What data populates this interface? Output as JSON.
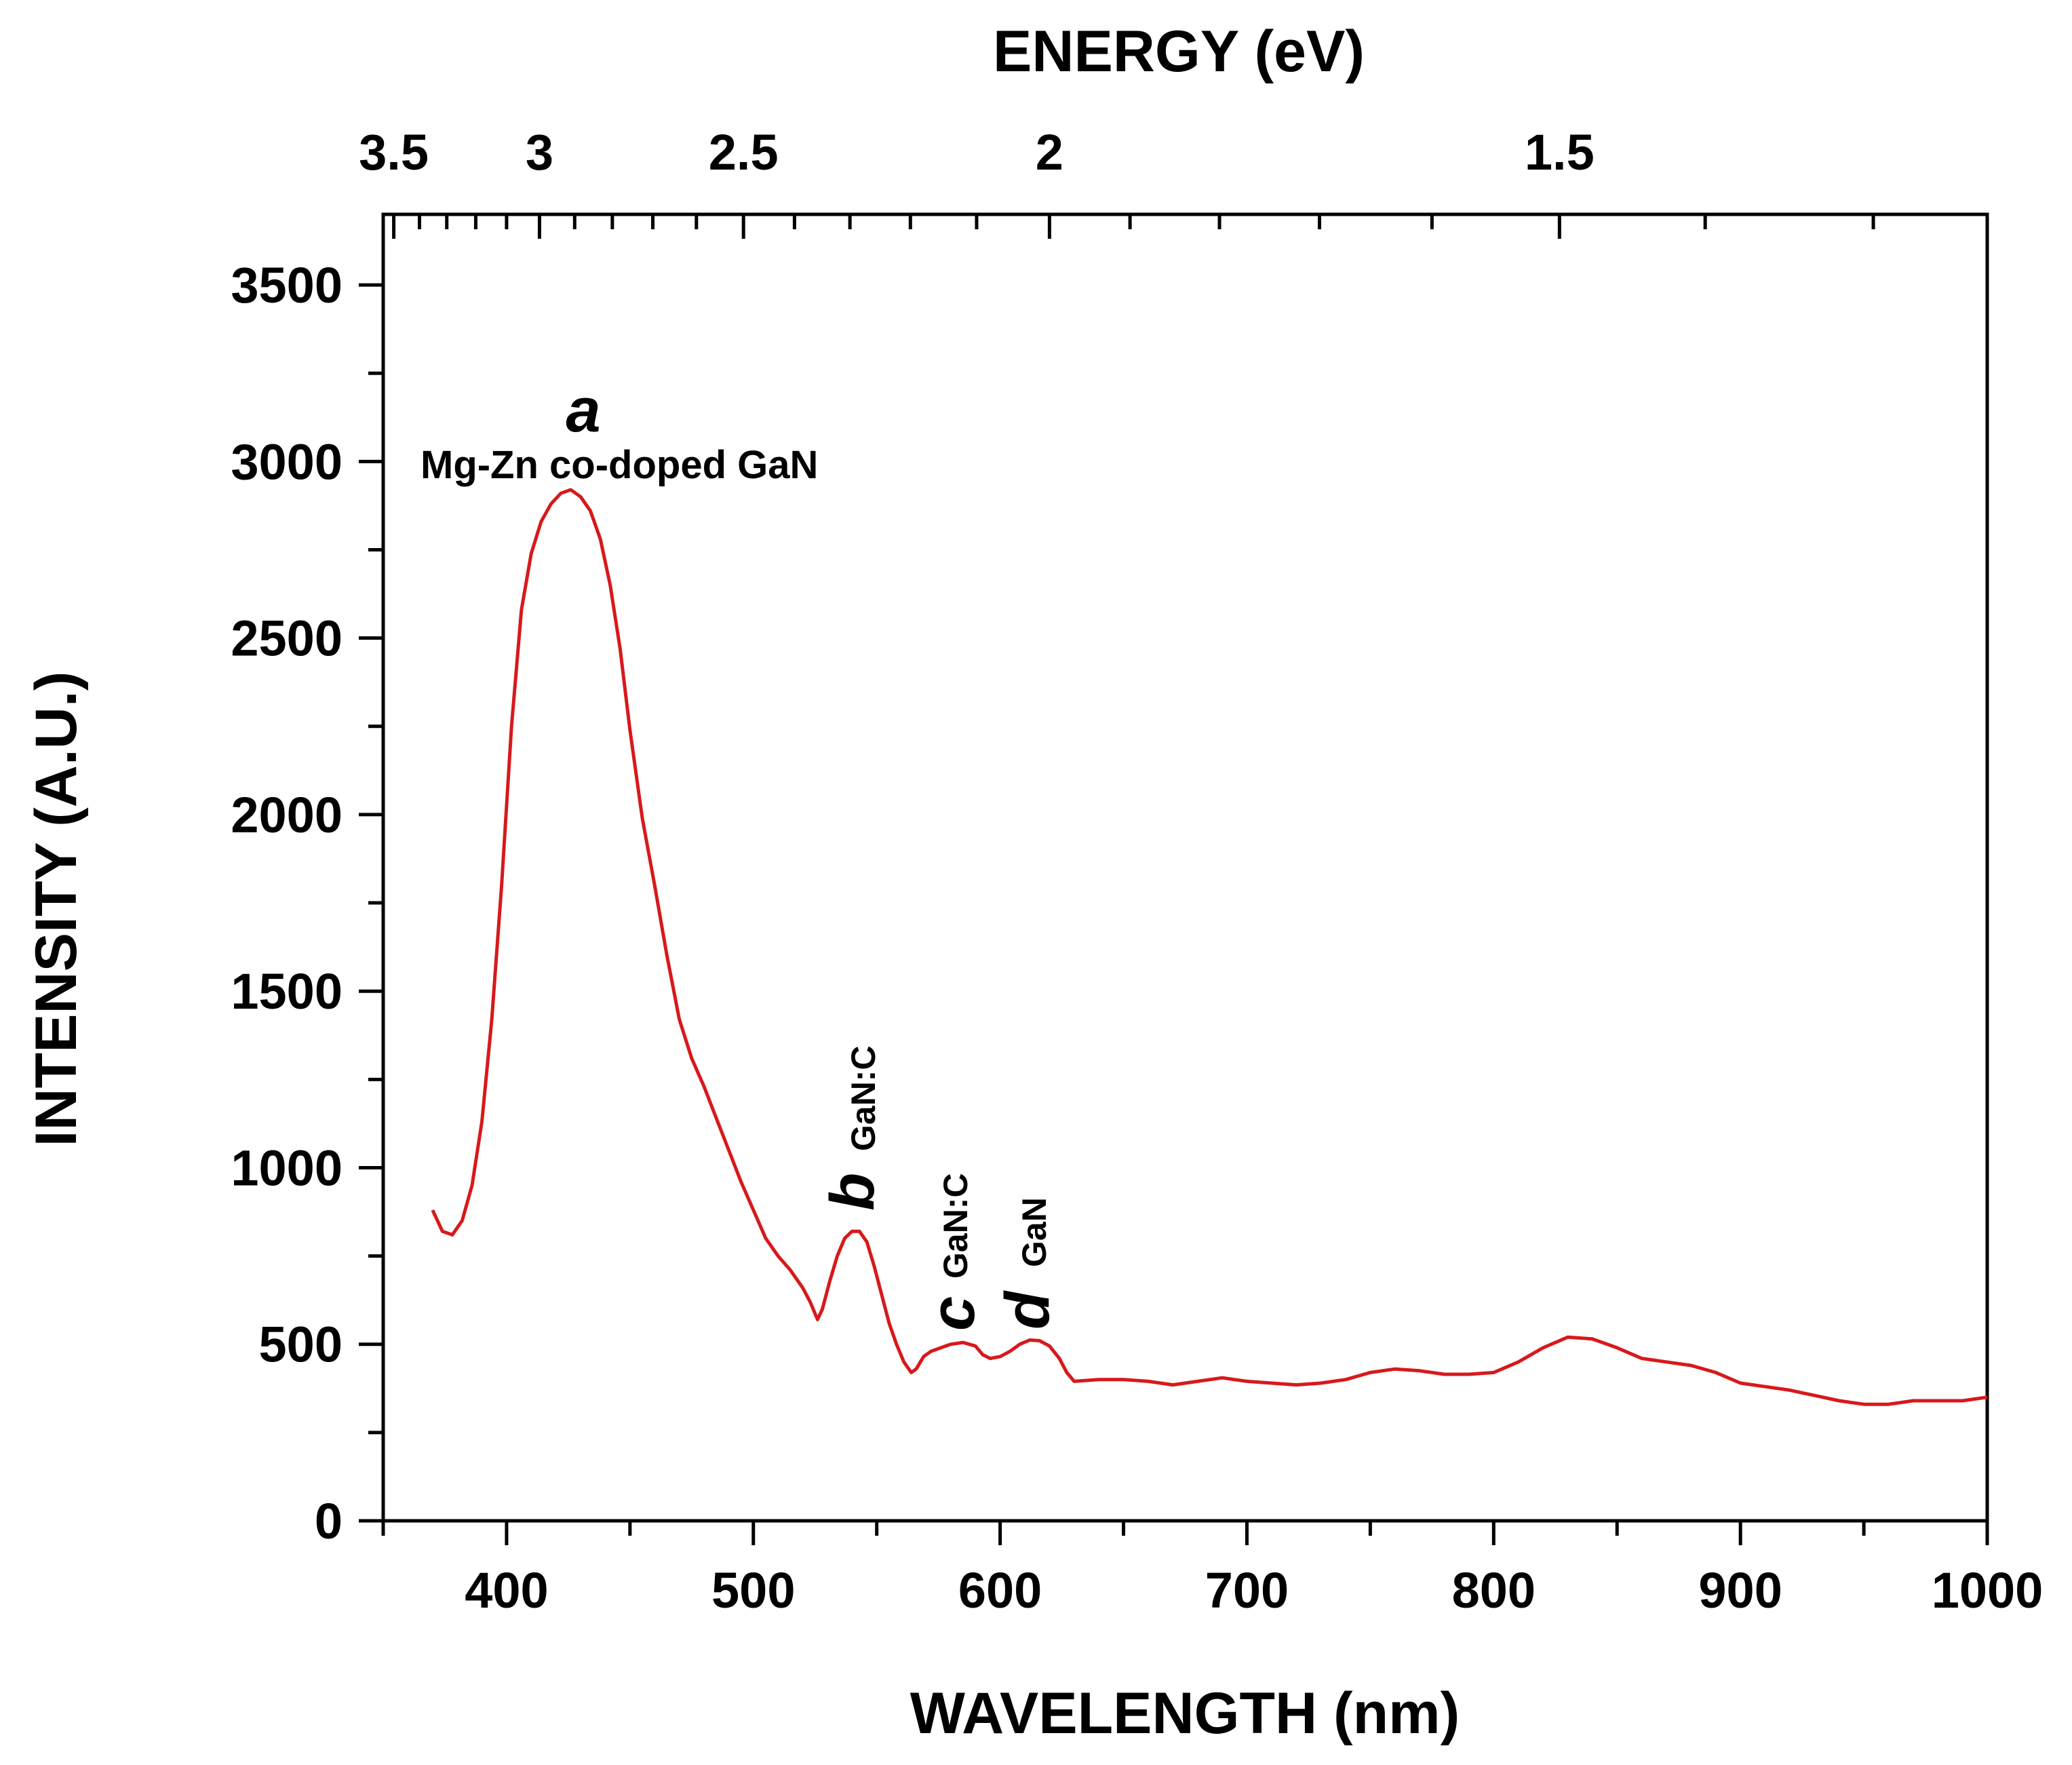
{
  "chart_data": {
    "type": "line",
    "xlabel": "WAVELENGTH (nm)",
    "ylabel": "INTENSITY (A.U.)",
    "x2label": "ENERGY (eV)",
    "xlim": [
      350,
      1000
    ],
    "ylim": [
      0,
      3700
    ],
    "x_ticks": [
      400,
      500,
      600,
      700,
      800,
      900,
      1000
    ],
    "y_ticks": [
      0,
      500,
      1000,
      1500,
      2000,
      2500,
      3000,
      3500
    ],
    "energy_ticks": [
      3.5,
      3,
      2.5,
      2,
      1.5
    ],
    "energy_tick_labels": [
      "3.5",
      "3",
      "2.5",
      "2",
      "1.5"
    ],
    "line_color": "#d7191c",
    "series": [
      {
        "name": "Mg-Zn co-doped GaN",
        "x": [
          370,
          374,
          378,
          382,
          386,
          390,
          394,
          398,
          402,
          406,
          410,
          414,
          418,
          422,
          426,
          430,
          434,
          438,
          442,
          446,
          450,
          455,
          460,
          465,
          470,
          475,
          480,
          485,
          490,
          495,
          500,
          505,
          510,
          515,
          520,
          523,
          526,
          528,
          531,
          534,
          537,
          540,
          543,
          546,
          549,
          552,
          555,
          558,
          561,
          564,
          566,
          569,
          572,
          576,
          580,
          585,
          590,
          593,
          596,
          600,
          604,
          608,
          612,
          616,
          620,
          624,
          627,
          630,
          640,
          650,
          660,
          670,
          680,
          690,
          700,
          710,
          720,
          730,
          740,
          750,
          760,
          770,
          780,
          790,
          800,
          810,
          820,
          830,
          840,
          850,
          860,
          870,
          880,
          890,
          900,
          910,
          920,
          930,
          940,
          950,
          960,
          970,
          980,
          990,
          1000
        ],
        "y": [
          880,
          820,
          810,
          850,
          950,
          1130,
          1420,
          1800,
          2250,
          2580,
          2740,
          2830,
          2880,
          2910,
          2920,
          2900,
          2860,
          2780,
          2650,
          2470,
          2240,
          1990,
          1800,
          1600,
          1420,
          1310,
          1230,
          1140,
          1050,
          960,
          880,
          800,
          750,
          710,
          660,
          620,
          570,
          600,
          680,
          750,
          800,
          820,
          820,
          790,
          720,
          640,
          560,
          500,
          450,
          420,
          430,
          465,
          480,
          490,
          500,
          505,
          495,
          470,
          460,
          465,
          480,
          500,
          512,
          510,
          495,
          460,
          420,
          395,
          400,
          400,
          395,
          385,
          395,
          405,
          395,
          390,
          385,
          390,
          400,
          420,
          430,
          425,
          415,
          415,
          420,
          450,
          490,
          520,
          515,
          490,
          460,
          450,
          440,
          420,
          390,
          380,
          370,
          355,
          340,
          330,
          330,
          340,
          340,
          340,
          350
        ]
      }
    ],
    "annotations": [
      {
        "letter": "a",
        "sub": "",
        "text": "Mg-Zn co-doped GaN"
      },
      {
        "letter": "b",
        "sub": "GaN:C"
      },
      {
        "letter": "c",
        "sub": "GaN:C"
      },
      {
        "letter": "d",
        "sub": "GaN"
      }
    ]
  }
}
